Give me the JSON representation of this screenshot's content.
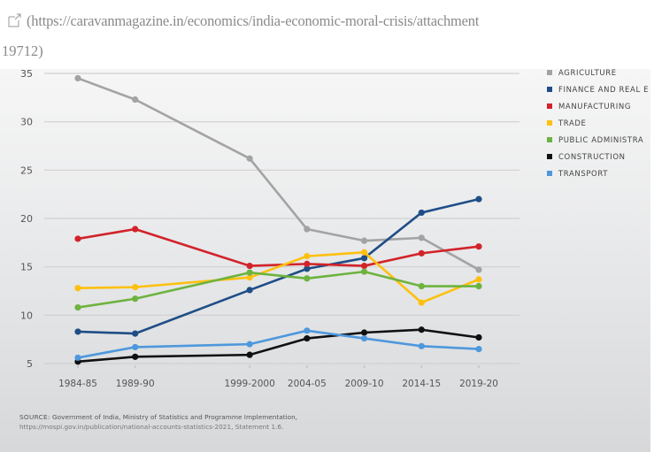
{
  "link": {
    "icon": "external-link-icon",
    "line1": "(https://caravanmagazine.in/economics/india-economic-moral-crisis/attachment",
    "line2": "19712)"
  },
  "chart_data": {
    "type": "line",
    "title": "",
    "xlabel": "",
    "ylabel": "",
    "x": [
      "1984-85",
      "1989-90",
      "1999-2000",
      "2004-05",
      "2009-10",
      "2014-15",
      "2019-20"
    ],
    "x_years": [
      1984,
      1989,
      1999,
      2004,
      2009,
      2014,
      2019
    ],
    "ylim": [
      5,
      35
    ],
    "yticks": [
      5,
      10,
      15,
      20,
      25,
      30,
      35
    ],
    "grid": true,
    "legend_position": "top-right",
    "series": [
      {
        "name": "AGRICULTURE",
        "color": "#a3a3a3",
        "values": [
          34.5,
          32.3,
          26.2,
          18.9,
          17.7,
          18.0,
          14.7
        ]
      },
      {
        "name": "FINANCE AND REAL E",
        "color": "#1f4e87",
        "values": [
          8.3,
          8.1,
          12.6,
          14.8,
          15.9,
          20.6,
          22.0
        ]
      },
      {
        "name": "MANUFACTURING",
        "color": "#d2232a",
        "values": [
          17.9,
          18.9,
          15.1,
          15.3,
          15.1,
          16.4,
          17.1
        ]
      },
      {
        "name": "TRADE",
        "color": "#fdc00f",
        "values": [
          12.8,
          12.9,
          13.9,
          16.1,
          16.5,
          11.3,
          13.7
        ]
      },
      {
        "name": "PUBLIC ADMINISTRA",
        "color": "#6db33f",
        "values": [
          10.8,
          11.7,
          14.4,
          13.8,
          14.5,
          13.0,
          13.0
        ]
      },
      {
        "name": "CONSTRUCTION",
        "color": "#111111",
        "values": [
          5.2,
          5.7,
          5.9,
          7.6,
          8.2,
          8.5,
          7.7
        ]
      },
      {
        "name": "TRANSPORT",
        "color": "#4e98dd",
        "values": [
          5.6,
          6.7,
          7.0,
          8.4,
          7.6,
          6.8,
          6.5
        ]
      }
    ],
    "source_label": "SOURCE:",
    "source_text": "Government of India, Ministry of Statistics and Programme Implementation,",
    "source_url": "https://mospi.gov.in/publication/national-accounts-statistics-2021, Statement 1.6."
  }
}
